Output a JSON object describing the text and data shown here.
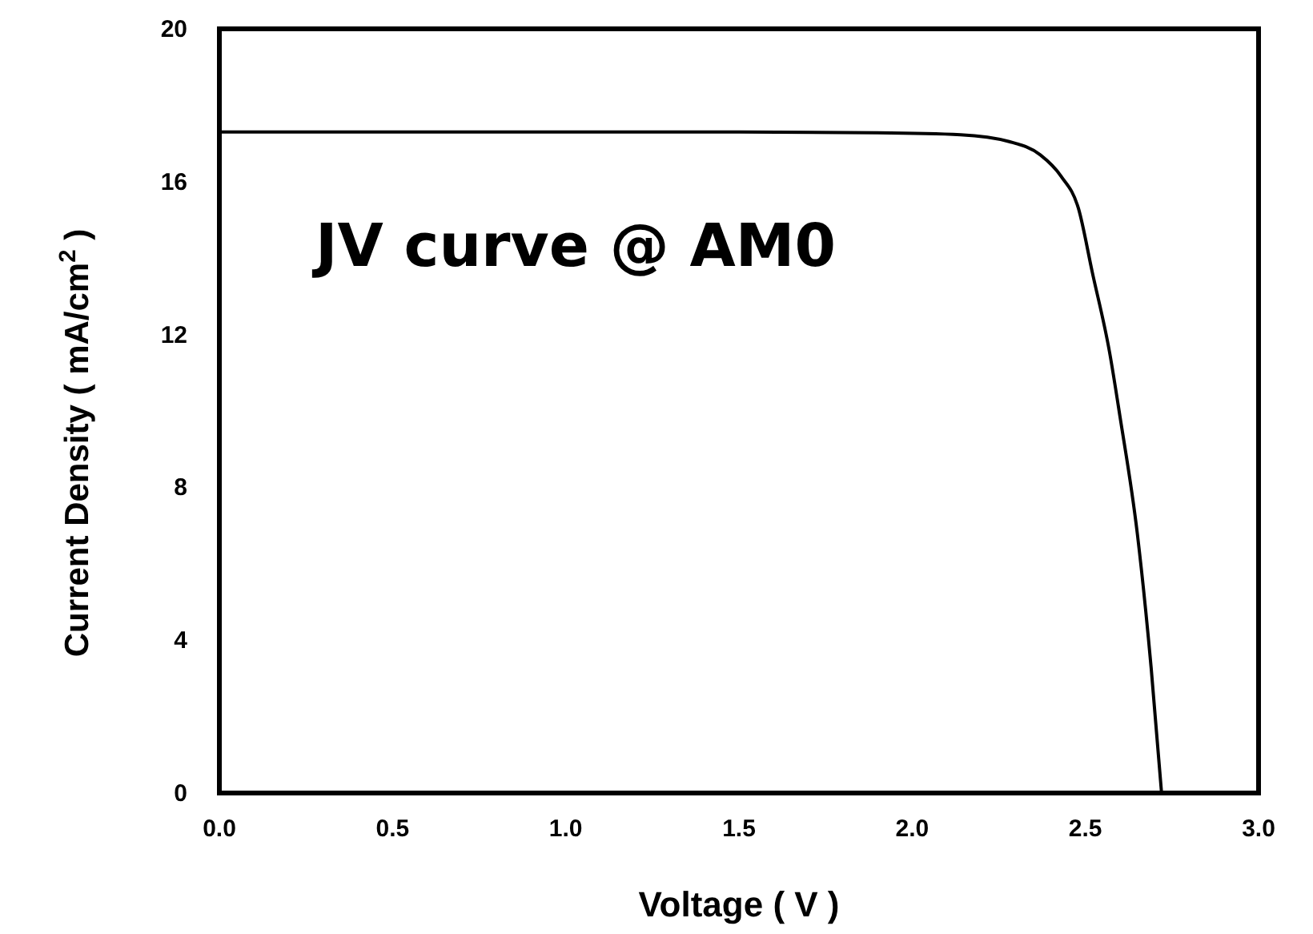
{
  "chart_data": {
    "type": "line",
    "title": "JV curve @ AM0",
    "xlabel": "Voltage ( V )",
    "ylabel": "Current Density ( mA/cm$^{2}$ )",
    "x": [
      0,
      0.5,
      1.0,
      1.5,
      1.9,
      2.14,
      2.28,
      2.37,
      2.43,
      2.48,
      2.52,
      2.57,
      2.6,
      2.65,
      2.69,
      2.72
    ],
    "series": [
      {
        "color": "#000000",
        "values": [
          17.3,
          17.3,
          17.3,
          17.3,
          17.28,
          17.23,
          17.05,
          16.7,
          16.14,
          15.3,
          13.63,
          11.53,
          9.85,
          6.79,
          3.27,
          0
        ]
      }
    ],
    "xlim": [
      0,
      3
    ],
    "ylim": [
      0,
      20
    ],
    "xticks": [
      {
        "value": 0,
        "label": "0.0"
      },
      {
        "value": 0.5,
        "label": "0.5"
      },
      {
        "value": 1,
        "label": "1.0"
      },
      {
        "value": 1.5,
        "label": "1.5"
      },
      {
        "value": 2,
        "label": "2.0"
      },
      {
        "value": 2.5,
        "label": "2.5"
      },
      {
        "value": 3,
        "label": "3.0"
      }
    ],
    "yticks": [
      0,
      4,
      8,
      12,
      16,
      20
    ],
    "grid": false,
    "marker": "none",
    "line_style": "solid"
  }
}
